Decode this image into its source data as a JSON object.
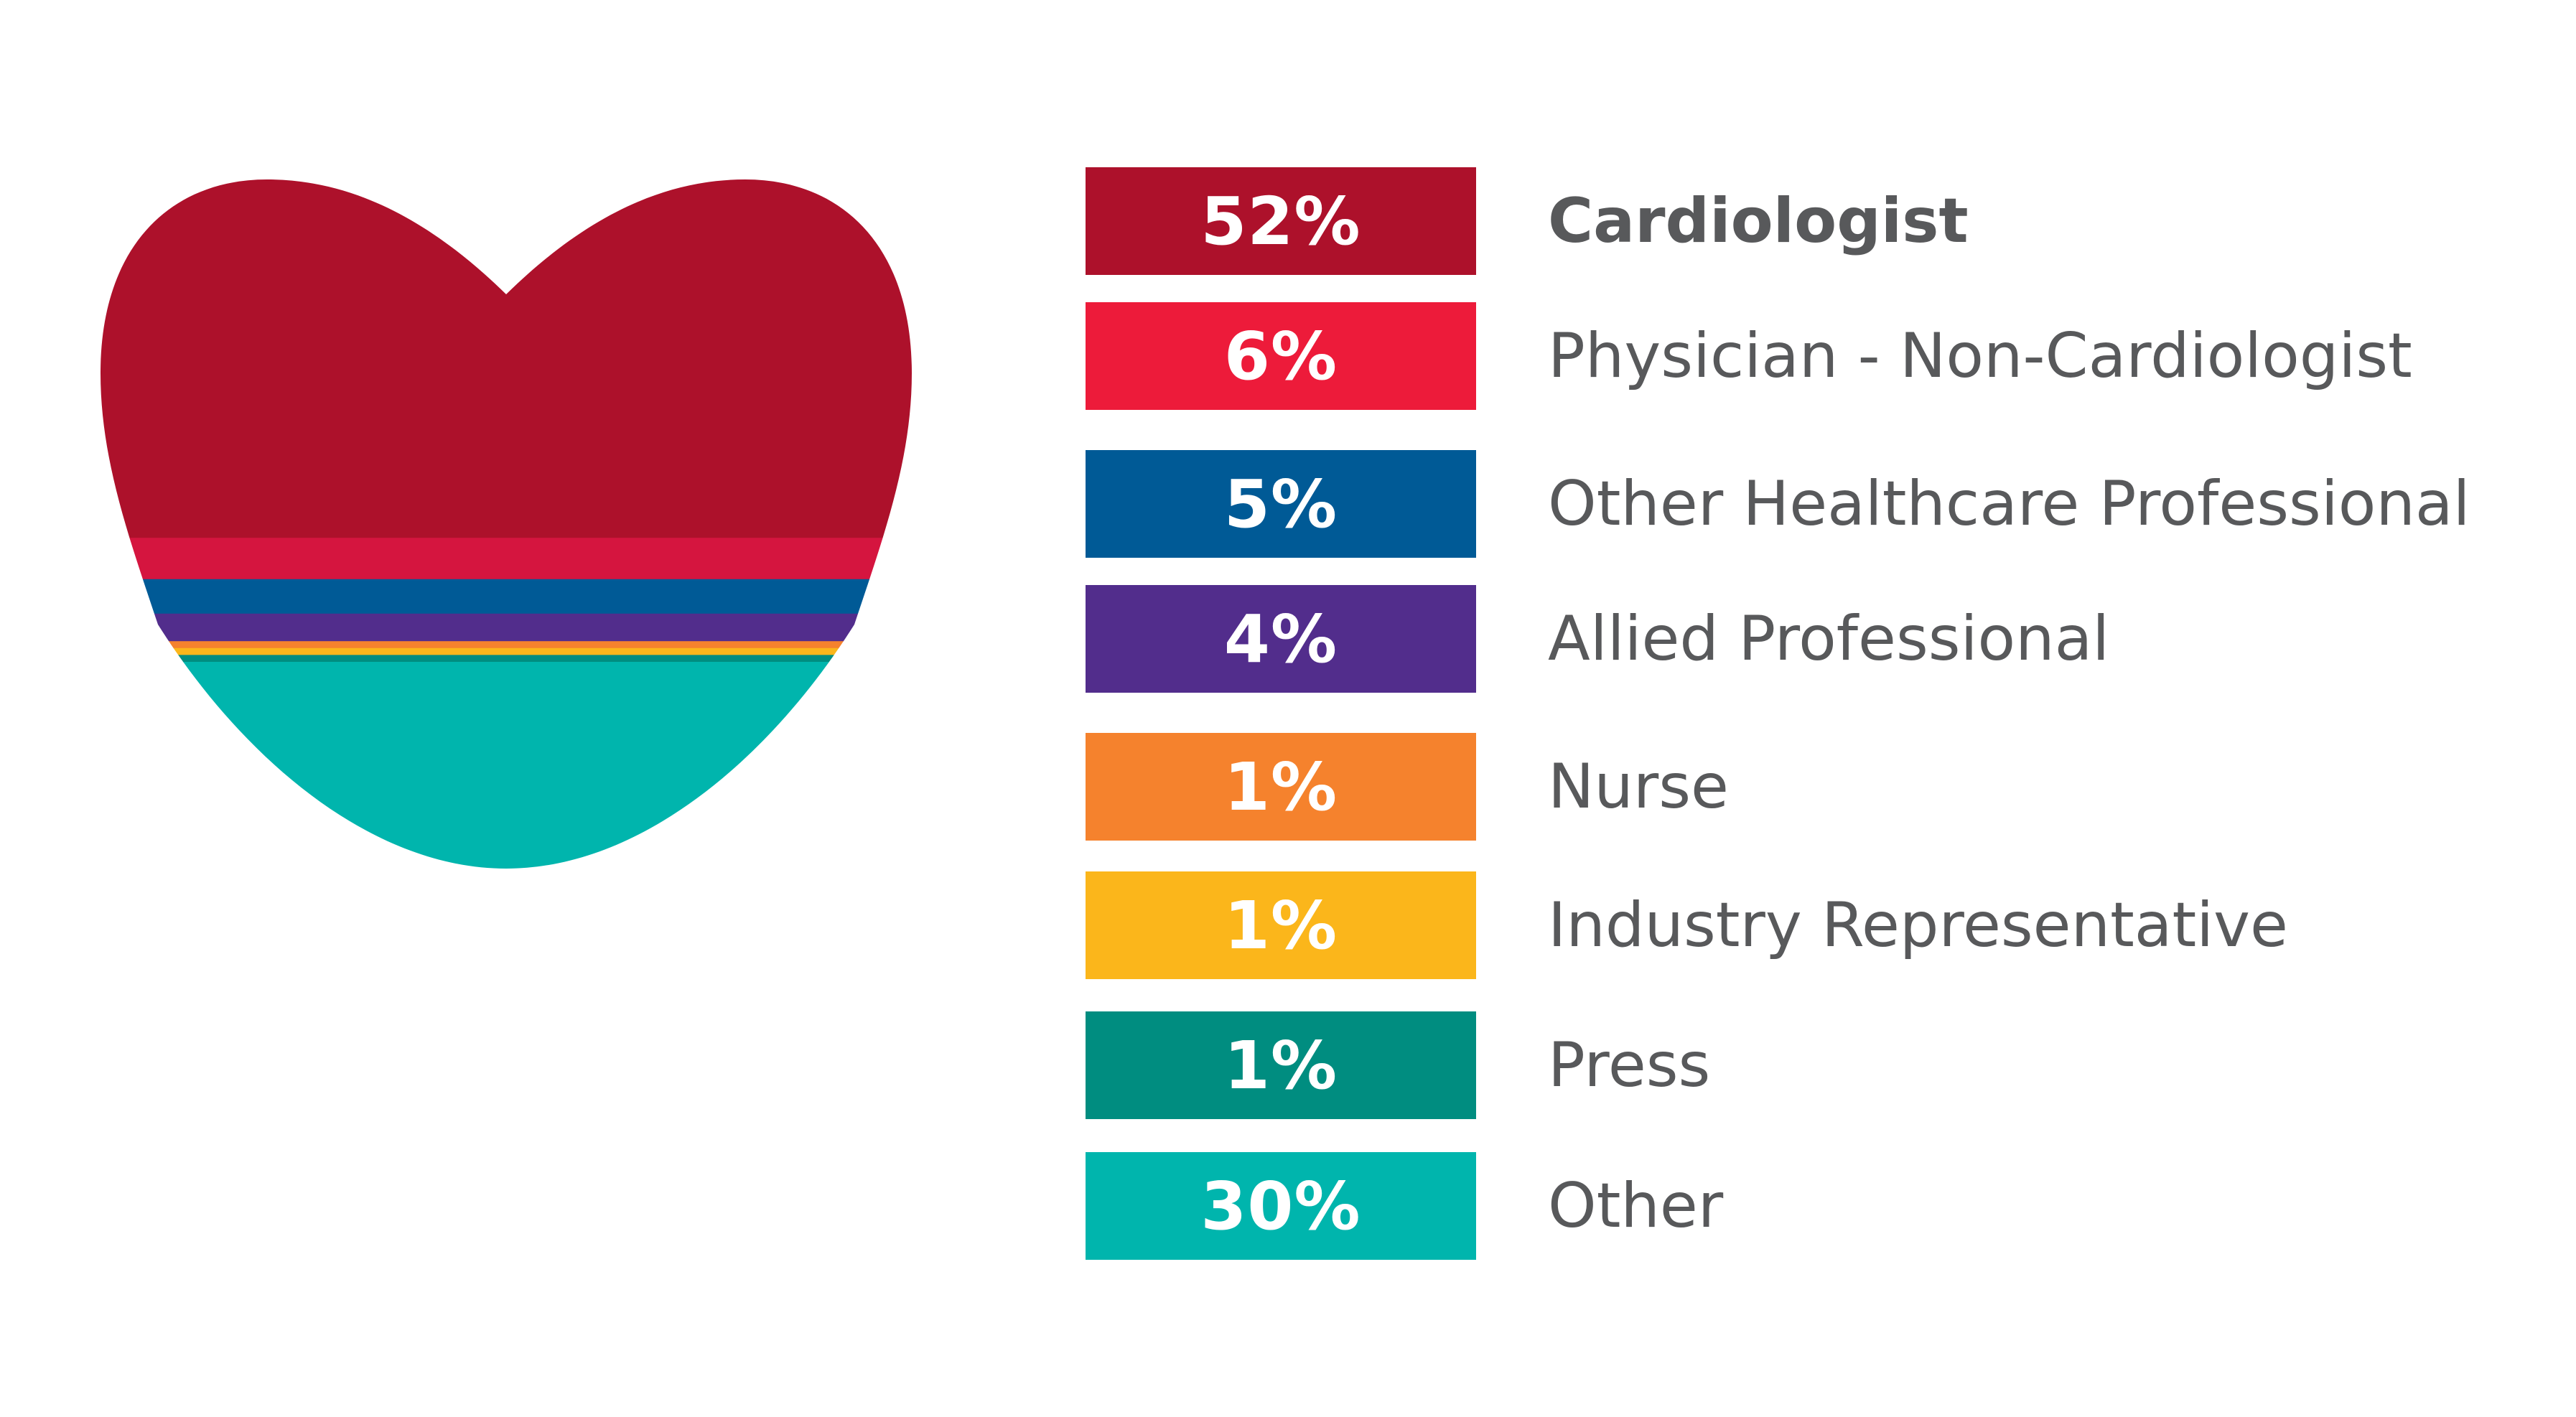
{
  "chart_data": {
    "type": "bar",
    "title": "",
    "categories": [
      "Cardiologist",
      "Physician - Non-Cardiologist",
      "Other Healthcare Professional",
      "Allied Professional",
      "Nurse",
      "Industry Representative",
      "Press",
      "Other"
    ],
    "values": [
      52,
      6,
      5,
      4,
      1,
      1,
      1,
      30
    ],
    "value_labels": [
      "52%",
      "6%",
      "5%",
      "4%",
      "1%",
      "1%",
      "1%",
      "30%"
    ],
    "colors": [
      "#ad112b",
      "#ed1b3a",
      "#005a96",
      "#522d8c",
      "#f5822d",
      "#fbb61b",
      "#008d80",
      "#00b5ad"
    ],
    "heart_colors": [
      "#ad112b",
      "#d5153f",
      "#005a96",
      "#522d8c",
      "#f5822d",
      "#fbb61b",
      "#008d80",
      "#00b5ad"
    ],
    "emphasized_category": "Cardiologist",
    "legend_placement": "right",
    "grid": false
  }
}
